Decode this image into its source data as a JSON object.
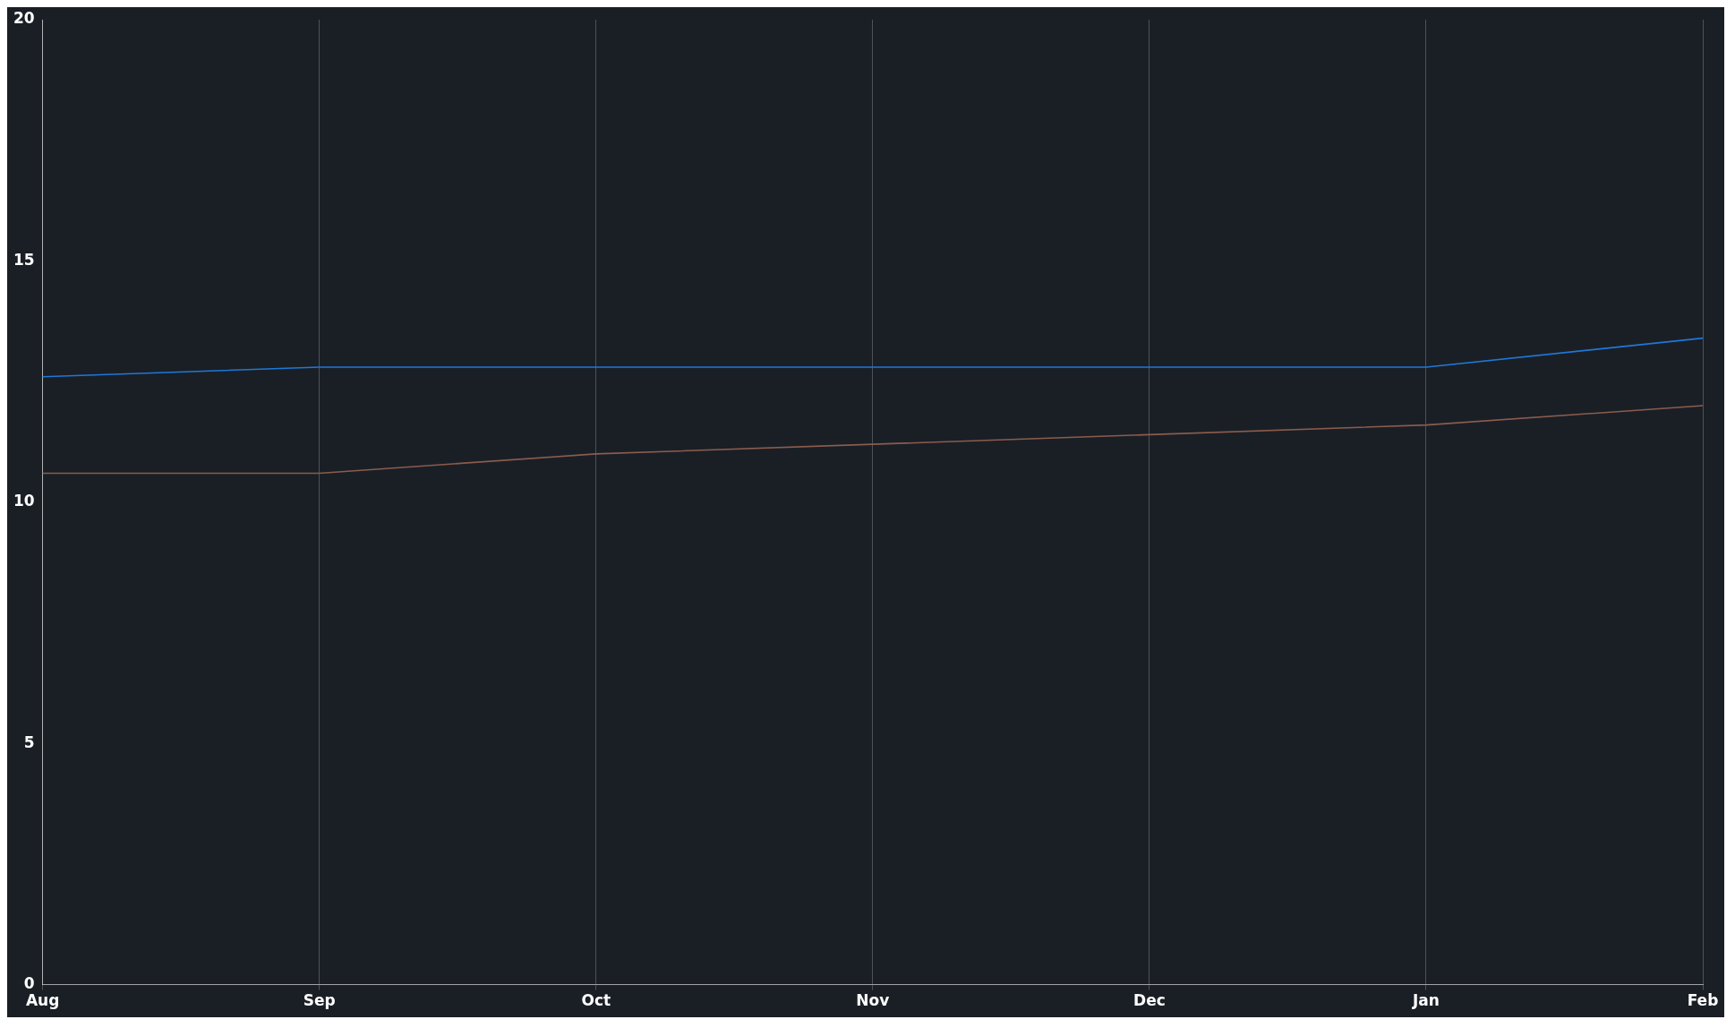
{
  "chart_data": {
    "type": "line",
    "categories": [
      "Aug",
      "Sep",
      "Oct",
      "Nov",
      "Dec",
      "Jan",
      "Feb"
    ],
    "series": [
      {
        "color": "#1f78d8",
        "values": [
          12.6,
          12.8,
          12.8,
          12.8,
          12.8,
          12.8,
          13.4
        ]
      },
      {
        "color": "#8c5c4c",
        "values": [
          10.6,
          10.6,
          11.0,
          11.2,
          11.4,
          11.6,
          12.0
        ]
      }
    ],
    "ylim": [
      0,
      20
    ],
    "yticks": [
      0,
      5,
      10,
      15,
      20
    ],
    "grid": "x"
  }
}
